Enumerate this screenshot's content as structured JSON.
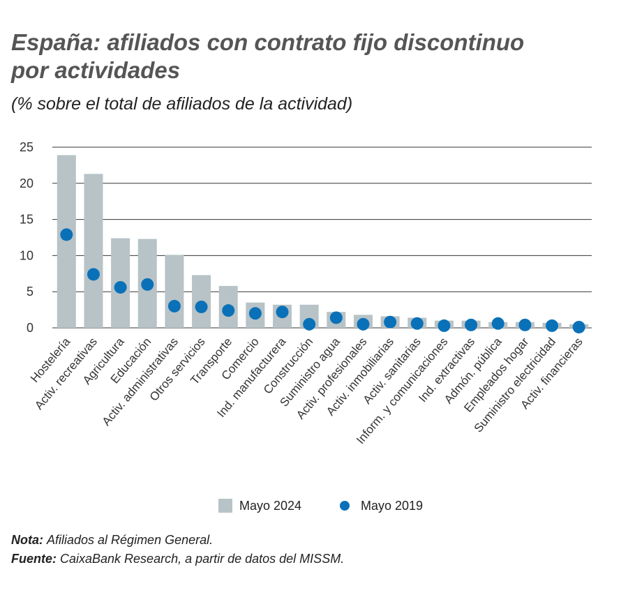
{
  "chart_data": {
    "type": "bar",
    "title": [
      "España: afiliados con contrato fijo discontinuo",
      "por actividades"
    ],
    "subtitle": "(% sobre el total de afiliados de la actividad)",
    "categories": [
      "Hostelería",
      "Activ. recreativas",
      "Agricultura",
      "Educación",
      "Activ. administrativas",
      "Otros servicios",
      "Transporte",
      "Comercio",
      "Ind. manufacturera",
      "Construcción",
      "Suministro agua",
      "Activ. profesionales",
      "Activ. inmobiliarias",
      "Activ. sanitarias",
      "Inform. y comunicaciones",
      "Ind. extractivas",
      "Admón. pública",
      "Empleados hogar",
      "Suministro electricidad",
      "Activ. financieras"
    ],
    "series": [
      {
        "name": "Mayo 2024",
        "type": "bar",
        "color": "#b7c3c7",
        "values": [
          23.9,
          21.3,
          12.4,
          12.3,
          10.1,
          7.3,
          5.8,
          3.5,
          3.2,
          3.2,
          2.2,
          1.8,
          1.6,
          1.4,
          1.0,
          1.0,
          0.8,
          0.8,
          0.7,
          0.5
        ]
      },
      {
        "name": "Mayo 2019",
        "type": "scatter",
        "color": "#0a71b8",
        "values": [
          12.9,
          7.4,
          5.6,
          6.0,
          3.0,
          2.9,
          2.4,
          2.0,
          2.2,
          0.5,
          1.4,
          0.5,
          0.8,
          0.6,
          0.3,
          0.4,
          0.6,
          0.4,
          0.3,
          0.1
        ]
      }
    ],
    "ylim": [
      0,
      25
    ],
    "yticks": [
      0,
      5,
      10,
      15,
      20,
      25
    ],
    "grid": true,
    "legend": "bottom",
    "notes": [
      {
        "label": "Nota:",
        "text": "Afiliados al Régimen General."
      },
      {
        "label": "Fuente:",
        "text": "CaixaBank Research, a partir de datos del MISSM."
      }
    ]
  }
}
